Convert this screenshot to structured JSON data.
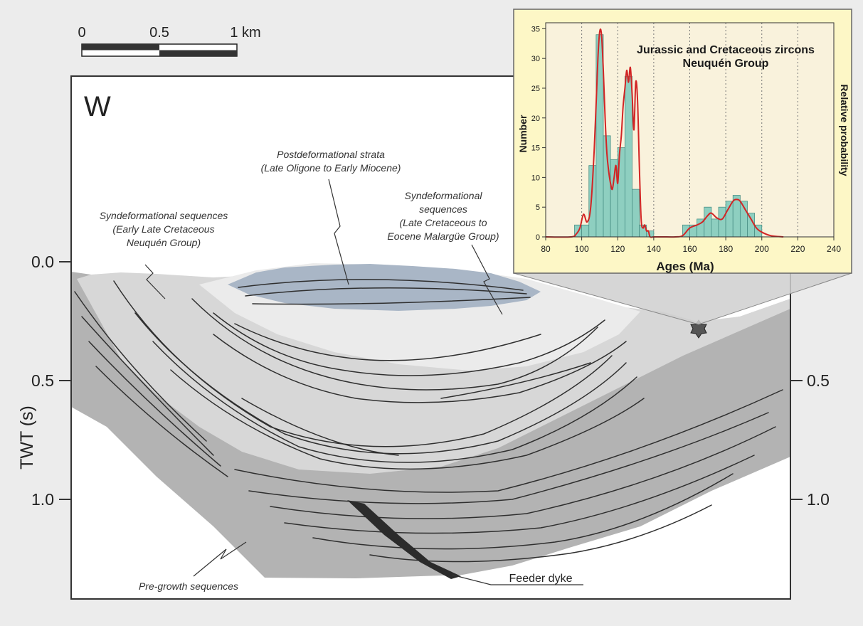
{
  "colors": {
    "background": "#ececec",
    "pre_growth": "#b3b3b3",
    "syndeformational_early": "#d7d7d7",
    "syndeformational_late": "#ebebeb",
    "postdeformational": "#a9b6c6",
    "inset_background": "#fdf7c6",
    "histogram_bar": "#8ecfc0",
    "probability_curve": "#d22525",
    "feeder_dyke": "#2b2b2b"
  },
  "scale_bar": {
    "labels": [
      "0",
      "0.5",
      "1 km"
    ]
  },
  "section": {
    "direction_label": "W",
    "twt_axis": {
      "title": "TWT (s)",
      "left_ticks": [
        "0.0",
        "0.5",
        "1.0"
      ],
      "right_ticks": [
        "0.5",
        "1.0"
      ]
    }
  },
  "annotations": {
    "postdeformational": [
      "Postdeformational strata",
      "(Late Oligone to Early Miocene)"
    ],
    "synde_early": [
      "Syndeformational sequences",
      "(Early Late Cretaceous",
      "Neuquén Group)"
    ],
    "synde_late": [
      "Syndeformational",
      "sequences",
      "(Late Cretaceous to",
      "Eocene Malargüe Group)"
    ],
    "pre_growth": "Pre-growth sequences",
    "feeder_dyke": "Feeder dyke"
  },
  "chart_data": {
    "type": "bar",
    "title": [
      "Jurassic and Cretaceous zircons",
      "Neuquén Group"
    ],
    "xlabel": "Ages (Ma)",
    "ylabel": "Number",
    "y2label": "Relative probability",
    "xlim": [
      80,
      240
    ],
    "ylim": [
      0,
      36
    ],
    "xticks": [
      80,
      100,
      120,
      140,
      160,
      180,
      200,
      220,
      240
    ],
    "yticks": [
      0,
      5,
      10,
      15,
      20,
      25,
      30,
      35
    ],
    "bin_width": 4,
    "bin_starts": [
      96,
      100,
      104,
      108,
      112,
      116,
      120,
      124,
      128,
      132,
      136,
      156,
      160,
      164,
      168,
      172,
      176,
      180,
      184,
      188,
      192,
      196
    ],
    "values": [
      2,
      2,
      12,
      34,
      17,
      13,
      15,
      27,
      8,
      2,
      1,
      2,
      2,
      3,
      5,
      3,
      5,
      6,
      7,
      6,
      4,
      2
    ],
    "probability_curve": {
      "x": [
        80,
        94,
        97,
        99,
        101,
        103,
        105,
        107,
        109,
        110,
        111,
        112,
        113,
        114,
        115,
        116,
        117,
        118,
        119,
        120,
        121,
        122,
        123,
        124,
        125,
        126,
        127,
        128,
        129,
        130,
        131,
        132,
        133,
        134,
        135,
        136,
        137,
        138,
        140,
        145,
        152,
        156,
        160,
        164,
        167,
        170,
        172,
        175,
        178,
        181,
        184,
        186,
        188,
        191,
        194,
        197,
        200,
        205,
        212
      ],
      "y": [
        0,
        0,
        0.5,
        1.5,
        3.8,
        2.5,
        5,
        15,
        30,
        34.5,
        34,
        28,
        20,
        14,
        11,
        9,
        8,
        10,
        12,
        9,
        14,
        17,
        22,
        25,
        28,
        26,
        28.5,
        24,
        18,
        26,
        23,
        12,
        3,
        1.5,
        2,
        1,
        1,
        0,
        0,
        0,
        0,
        0.2,
        1.5,
        2,
        2.5,
        3.6,
        4,
        3.2,
        3,
        4.5,
        6,
        6.3,
        6,
        4.5,
        3,
        1.5,
        0.8,
        0.2,
        0
      ]
    }
  }
}
